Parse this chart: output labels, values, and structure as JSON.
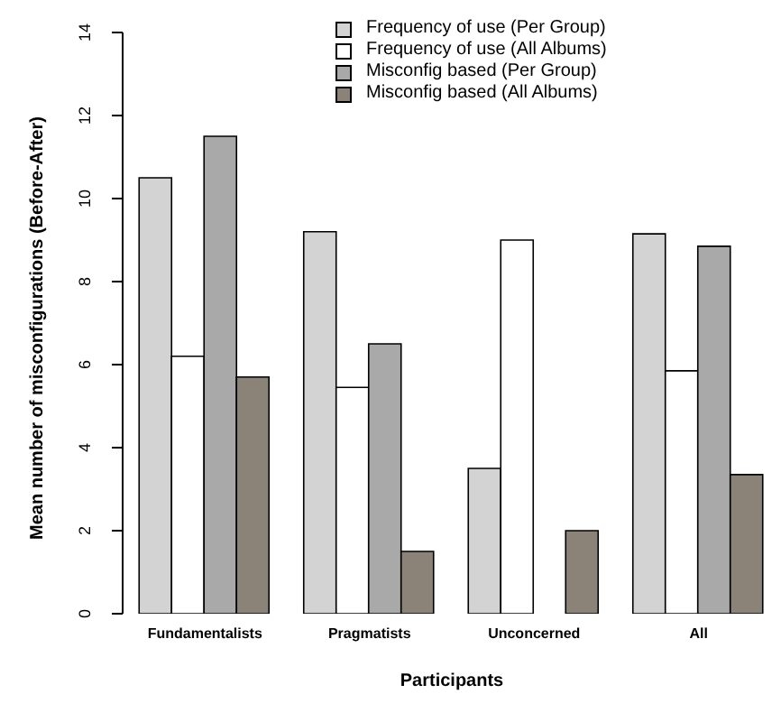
{
  "chart_data": {
    "type": "bar",
    "xlabel": "Participants",
    "ylabel": "Mean number of misconfigurations (Before-After)",
    "categories": [
      "Fundamentalists",
      "Pragmatists",
      "Unconcerned",
      "All"
    ],
    "series": [
      {
        "name": "Frequency of use (Per Group)",
        "color": "#d3d3d3",
        "values": [
          10.5,
          9.2,
          3.5,
          9.15
        ]
      },
      {
        "name": "Frequency of use (All Albums)",
        "color": "#ffffff",
        "values": [
          6.2,
          5.45,
          9.0,
          5.85
        ]
      },
      {
        "name": "Misconfig based (Per Group)",
        "color": "#a9a9a9",
        "values": [
          11.5,
          6.5,
          0,
          8.85
        ]
      },
      {
        "name": "Misconfig based (All Albums)",
        "color": "#8b8378",
        "values": [
          5.7,
          1.5,
          2.0,
          3.35
        ]
      }
    ],
    "ylim": [
      0,
      14
    ],
    "yticks": [
      0,
      2,
      4,
      6,
      8,
      10,
      12,
      14
    ],
    "grid": false,
    "legend": "top right"
  }
}
